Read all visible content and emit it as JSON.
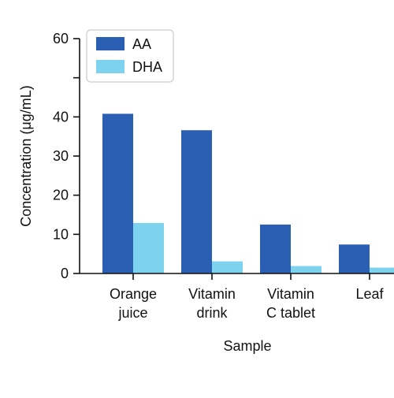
{
  "chart_data": {
    "type": "bar",
    "categories": [
      [
        "Orange",
        "juice"
      ],
      [
        "Vitamin",
        "drink"
      ],
      [
        "Vitamin",
        "C tablet"
      ],
      [
        "Leaf"
      ]
    ],
    "series": [
      {
        "name": "AA",
        "values": [
          40.8,
          36.6,
          12.5,
          7.4
        ],
        "color": "#2b5fb4"
      },
      {
        "name": "DHA",
        "values": [
          12.9,
          3.1,
          1.9,
          1.5
        ],
        "color": "#7dd3ee"
      }
    ],
    "xlabel": "Sample",
    "ylabel": "Concentration (μg/mL)",
    "ylim": [
      0,
      60
    ],
    "yticks": [
      0,
      10,
      20,
      30,
      40,
      50,
      60
    ],
    "ytick_labels": [
      "0",
      "10",
      "20",
      "30",
      "40",
      "",
      "60"
    ],
    "grid": false,
    "legend_position": "top-left"
  }
}
